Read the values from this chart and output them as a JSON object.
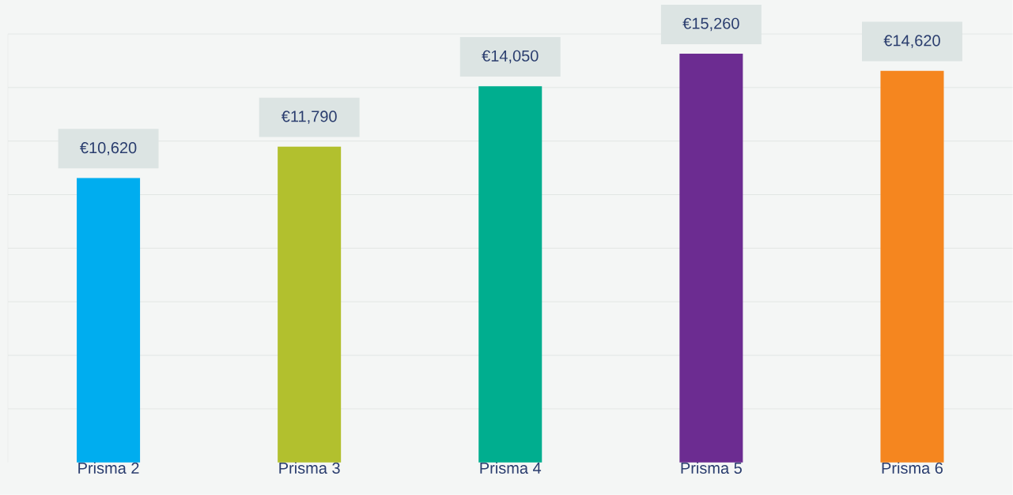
{
  "chart_data": {
    "type": "bar",
    "categories": [
      "Prisma 2",
      "Prisma 3",
      "Prisma 4",
      "Prisma 5",
      "Prisma 6"
    ],
    "values": [
      10620,
      11790,
      14050,
      15260,
      14620
    ],
    "value_labels": [
      "€10,620",
      "€11,790",
      "€14,050",
      "€15,260",
      "€14,620"
    ],
    "colors": [
      "#00adef",
      "#b2c02e",
      "#00ae8f",
      "#6c2c91",
      "#f5861f"
    ],
    "ylim": [
      0,
      16000
    ],
    "yticks": [
      {
        "value": 2000,
        "label": null
      },
      {
        "value": 4000,
        "label": null
      },
      {
        "value": 6000,
        "label": null
      },
      {
        "value": 8000,
        "label": null
      },
      {
        "value": 10000,
        "label": null
      },
      {
        "value": 12000,
        "label": null
      },
      {
        "value": 14000,
        "label": null
      },
      {
        "value": 16000,
        "label": null
      }
    ],
    "tick_labels": "x",
    "grid": "y"
  }
}
